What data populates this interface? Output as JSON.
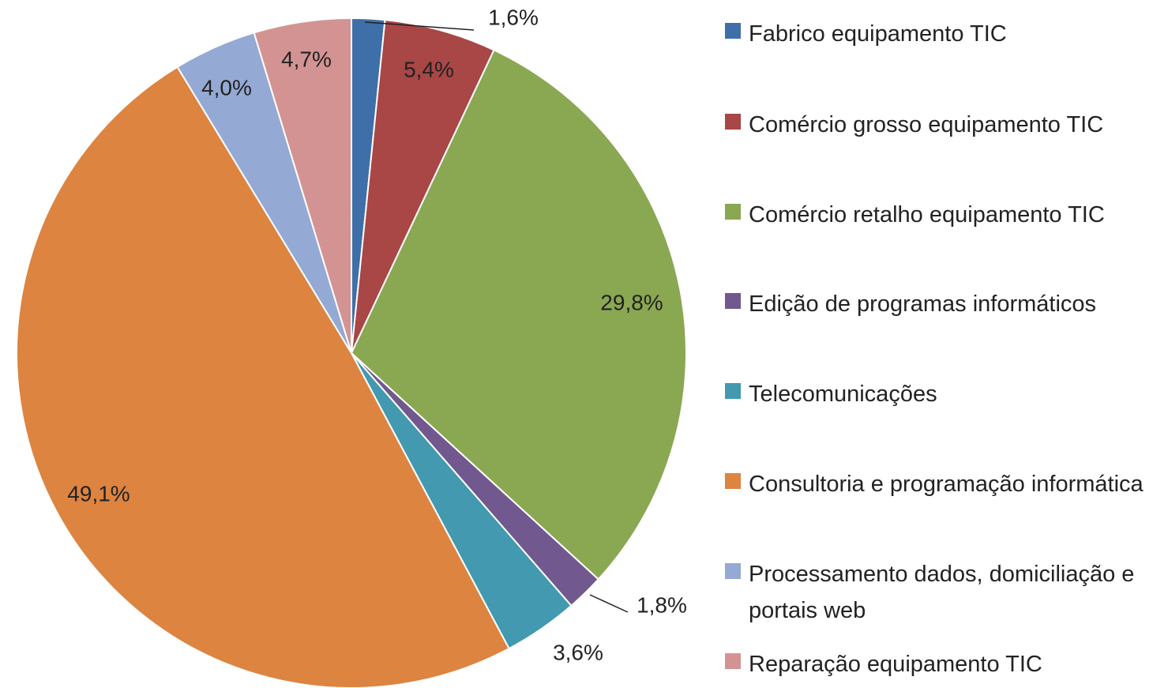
{
  "chart_data": {
    "type": "pie",
    "categories": [
      "Fabrico equipamento TIC",
      "Comércio grosso equipamento TIC",
      "Comércio retalho equipamento TIC",
      "Edição de programas informáticos",
      "Telecomunicações",
      "Consultoria e programação informática",
      "Processamento dados, domiciliação e portais web",
      "Reparação equipamento TIC"
    ],
    "values": [
      1.6,
      5.4,
      29.8,
      1.8,
      3.6,
      49.1,
      4.0,
      4.7
    ],
    "value_labels": [
      "1,6%",
      "5,4%",
      "29,8%",
      "1,8%",
      "3,6%",
      "49,1%",
      "4,0%",
      "4,7%"
    ],
    "colors": [
      "#3f6fa8",
      "#a94646",
      "#8aa752",
      "#71588f",
      "#4299b0",
      "#dd8441",
      "#94a9d3",
      "#d39393"
    ],
    "legend": "right"
  }
}
